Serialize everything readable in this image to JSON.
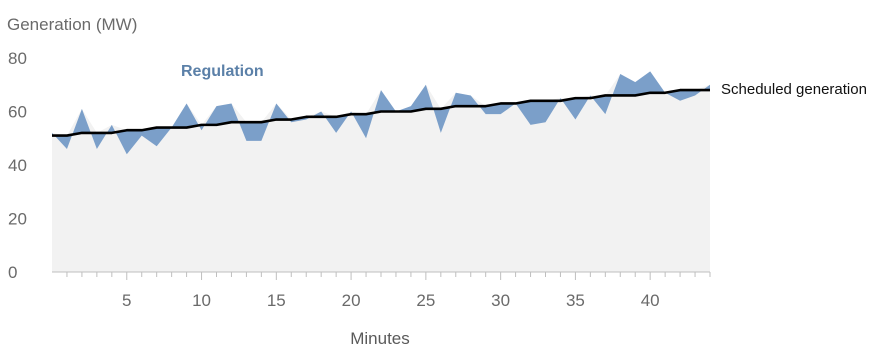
{
  "chart_data": {
    "type": "area",
    "ylabel": "Generation (MW)",
    "xlabel": "Minutes",
    "ylim": [
      0,
      80
    ],
    "xlim": [
      0,
      44
    ],
    "y_ticks": [
      0,
      20,
      40,
      60,
      80
    ],
    "x_ticks": [
      5,
      10,
      15,
      20,
      25,
      30,
      35,
      40
    ],
    "grid": false,
    "annotations": {
      "regulation_label": "Regulation",
      "scheduled_label": "Scheduled generation"
    },
    "colors": {
      "regulation": "#7b9fc9",
      "background_fill": "#f2f2f2",
      "scheduled": "#000000",
      "axis": "#bfbfbf",
      "text": "#6a6a6a"
    },
    "x": [
      0,
      1,
      2,
      3,
      4,
      5,
      6,
      7,
      8,
      9,
      10,
      11,
      12,
      13,
      14,
      15,
      16,
      17,
      18,
      19,
      20,
      21,
      22,
      23,
      24,
      25,
      26,
      27,
      28,
      29,
      30,
      31,
      32,
      33,
      34,
      35,
      36,
      37,
      38,
      39,
      40,
      41,
      42,
      43,
      44
    ],
    "series": [
      {
        "name": "Scheduled generation",
        "values": [
          51,
          51,
          52,
          52,
          52,
          53,
          53,
          54,
          54,
          54,
          55,
          55,
          56,
          56,
          56,
          57,
          57,
          58,
          58,
          58,
          59,
          59,
          60,
          60,
          60,
          61,
          61,
          62,
          62,
          62,
          63,
          63,
          64,
          64,
          64,
          65,
          65,
          66,
          66,
          66,
          67,
          67,
          68,
          68,
          68
        ]
      },
      {
        "name": "Regulation",
        "values": [
          52,
          46,
          61,
          46,
          55,
          44,
          51,
          47,
          54,
          63,
          53,
          62,
          63,
          49,
          49,
          63,
          56,
          57,
          60,
          52,
          60,
          50,
          68,
          60,
          62,
          70,
          52,
          67,
          66,
          59,
          59,
          63,
          55,
          56,
          65,
          57,
          66,
          59,
          74,
          71,
          75,
          67,
          64,
          66,
          70
        ]
      }
    ]
  }
}
